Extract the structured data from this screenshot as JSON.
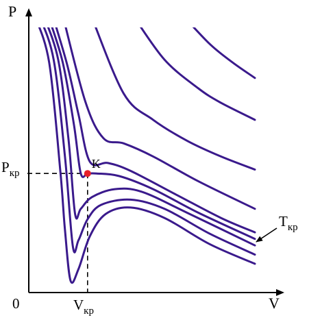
{
  "chart_data": {
    "type": "line",
    "labels": {
      "p_axis": "P",
      "v_axis": "V",
      "origin": "0",
      "p_crit_main": "P",
      "p_crit_sub": "кр",
      "v_crit_main": "V",
      "v_crit_sub": "кр",
      "crit_point": "K",
      "t_crit_main": "T",
      "t_crit_sub": "кр"
    },
    "axes": {
      "xlim": [
        0,
        10
      ],
      "ylim": [
        0,
        10
      ],
      "grid": false
    },
    "critical_point": {
      "x": 2.6,
      "y": 4.55
    },
    "critical_isotherm_index": 3,
    "series": [
      {
        "points": [
          [
            0.25,
            10.6
          ],
          [
            0.9,
            8.8
          ],
          [
            1.4,
            4.6
          ],
          [
            1.6,
            2.4
          ],
          [
            1.85,
            0.45
          ],
          [
            2.2,
            0.9
          ],
          [
            2.7,
            2.15
          ],
          [
            3.4,
            3.0
          ],
          [
            4.5,
            3.25
          ],
          [
            6.0,
            2.85
          ],
          [
            8.0,
            1.85
          ],
          [
            10.0,
            1.1
          ]
        ]
      },
      {
        "points": [
          [
            0.45,
            10.6
          ],
          [
            1.1,
            8.9
          ],
          [
            1.6,
            5.2
          ],
          [
            1.95,
            1.75
          ],
          [
            2.2,
            2.0
          ],
          [
            2.6,
            2.8
          ],
          [
            3.2,
            3.35
          ],
          [
            4.5,
            3.55
          ],
          [
            6.0,
            3.2
          ],
          [
            8.0,
            2.25
          ],
          [
            10.0,
            1.45
          ]
        ]
      },
      {
        "points": [
          [
            0.65,
            10.6
          ],
          [
            1.3,
            8.9
          ],
          [
            1.75,
            5.9
          ],
          [
            2.05,
            3.0
          ],
          [
            2.3,
            3.2
          ],
          [
            2.8,
            3.65
          ],
          [
            3.8,
            3.95
          ],
          [
            5.0,
            3.85
          ],
          [
            7.0,
            3.05
          ],
          [
            10.0,
            1.8
          ]
        ]
      },
      {
        "points": [
          [
            0.85,
            10.6
          ],
          [
            1.5,
            8.8
          ],
          [
            2.0,
            6.4
          ],
          [
            2.3,
            4.55
          ],
          [
            2.6,
            4.55
          ],
          [
            3.0,
            4.55
          ],
          [
            4.0,
            4.45
          ],
          [
            5.5,
            3.95
          ],
          [
            7.5,
            3.05
          ],
          [
            10.0,
            2.05
          ]
        ]
      },
      {
        "points": [
          [
            1.05,
            10.6
          ],
          [
            1.7,
            8.7
          ],
          [
            2.2,
            6.8
          ],
          [
            2.7,
            5.0
          ],
          [
            3.5,
            4.95
          ],
          [
            4.5,
            4.65
          ],
          [
            6.5,
            3.75
          ],
          [
            8.5,
            2.85
          ],
          [
            10.0,
            2.3
          ]
        ]
      },
      {
        "points": [
          [
            1.5,
            10.6
          ],
          [
            2.5,
            7.3
          ],
          [
            3.3,
            5.9
          ],
          [
            4.2,
            5.7
          ],
          [
            5.5,
            5.2
          ],
          [
            7.5,
            4.25
          ],
          [
            10.0,
            3.2
          ]
        ]
      },
      {
        "points": [
          [
            2.75,
            10.6
          ],
          [
            4.2,
            7.6
          ],
          [
            5.5,
            6.6
          ],
          [
            7.0,
            5.8
          ],
          [
            8.5,
            5.2
          ],
          [
            10.0,
            4.7
          ]
        ]
      },
      {
        "points": [
          [
            4.6,
            10.6
          ],
          [
            6.0,
            8.9
          ],
          [
            7.5,
            7.8
          ],
          [
            8.5,
            7.25
          ],
          [
            10.0,
            6.6
          ]
        ]
      },
      {
        "points": [
          [
            6.8,
            10.6
          ],
          [
            8.0,
            9.5
          ],
          [
            9.0,
            8.8
          ],
          [
            10.0,
            8.2
          ]
        ]
      }
    ]
  }
}
